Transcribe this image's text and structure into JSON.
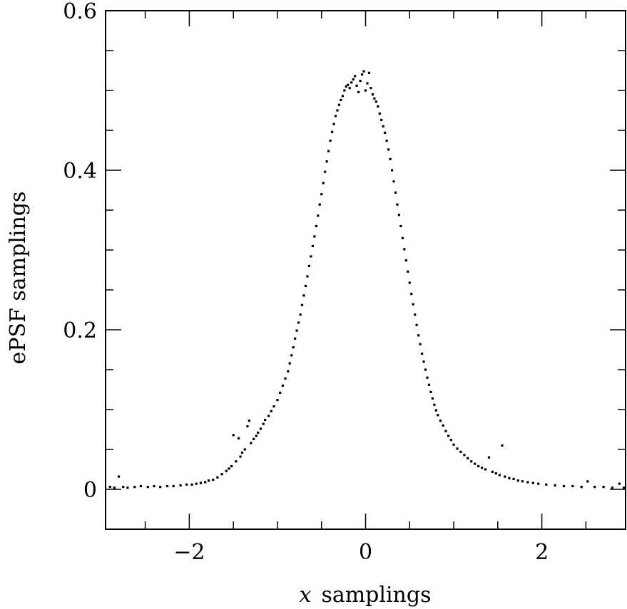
{
  "chart_data": {
    "type": "scatter",
    "title": "",
    "xlabel_var": "x",
    "xlabel_rest": "samplings",
    "ylabel": "ePSF samplings",
    "xlim": [
      -2.95,
      2.95
    ],
    "ylim": [
      -0.05,
      0.6
    ],
    "x_ticks_major": [
      -2,
      0,
      2
    ],
    "x_tick_labels": [
      "−2",
      "0",
      "2"
    ],
    "y_ticks_major": [
      0,
      0.2,
      0.4,
      0.6
    ],
    "y_tick_labels": [
      "0",
      "0.2",
      "0.4",
      "0.6"
    ],
    "x_ticks_minor_step": 0.5,
    "y_ticks_minor_step": 0.05,
    "marker_color": "#000000",
    "points": [
      [
        -2.9,
        0.003
      ],
      [
        -2.85,
        0.002
      ],
      [
        -2.8,
        0.016
      ],
      [
        -2.75,
        0.003
      ],
      [
        -2.7,
        0.002
      ],
      [
        -2.62,
        0.003
      ],
      [
        -2.55,
        0.004
      ],
      [
        -2.47,
        0.003
      ],
      [
        -2.4,
        0.004
      ],
      [
        -2.33,
        0.003
      ],
      [
        -2.25,
        0.004
      ],
      [
        -2.18,
        0.004
      ],
      [
        -2.1,
        0.005
      ],
      [
        -2.03,
        0.006
      ],
      [
        -1.97,
        0.006
      ],
      [
        -1.92,
        0.007
      ],
      [
        -1.87,
        0.008
      ],
      [
        -1.82,
        0.009
      ],
      [
        -1.78,
        0.011
      ],
      [
        -1.73,
        0.012
      ],
      [
        -1.68,
        0.015
      ],
      [
        -1.63,
        0.019
      ],
      [
        -1.58,
        0.023
      ],
      [
        -1.55,
        0.026
      ],
      [
        -1.52,
        0.029
      ],
      [
        -1.5,
        0.068
      ],
      [
        -1.47,
        0.035
      ],
      [
        -1.44,
        0.064
      ],
      [
        -1.42,
        0.041
      ],
      [
        -1.4,
        0.046
      ],
      [
        -1.37,
        0.05
      ],
      [
        -1.34,
        0.079
      ],
      [
        -1.32,
        0.086
      ],
      [
        -1.3,
        0.058
      ],
      [
        -1.27,
        0.063
      ],
      [
        -1.24,
        0.067
      ],
      [
        -1.22,
        0.071
      ],
      [
        -1.19,
        0.076
      ],
      [
        -1.16,
        0.082
      ],
      [
        -1.14,
        0.087
      ],
      [
        -1.1,
        0.092
      ],
      [
        -1.07,
        0.098
      ],
      [
        -1.04,
        0.104
      ],
      [
        -1.0,
        0.112
      ],
      [
        -0.97,
        0.121
      ],
      [
        -0.94,
        0.13
      ],
      [
        -0.91,
        0.139
      ],
      [
        -0.88,
        0.148
      ],
      [
        -0.86,
        0.158
      ],
      [
        -0.84,
        0.168
      ],
      [
        -0.82,
        0.178
      ],
      [
        -0.8,
        0.189
      ],
      [
        -0.78,
        0.199
      ],
      [
        -0.76,
        0.209
      ],
      [
        -0.74,
        0.219
      ],
      [
        -0.72,
        0.231
      ],
      [
        -0.7,
        0.243
      ],
      [
        -0.68,
        0.255
      ],
      [
        -0.66,
        0.267
      ],
      [
        -0.64,
        0.28
      ],
      [
        -0.62,
        0.292
      ],
      [
        -0.6,
        0.305
      ],
      [
        -0.58,
        0.317
      ],
      [
        -0.56,
        0.33
      ],
      [
        -0.54,
        0.343
      ],
      [
        -0.52,
        0.357
      ],
      [
        -0.5,
        0.37
      ],
      [
        -0.48,
        0.384
      ],
      [
        -0.46,
        0.398
      ],
      [
        -0.44,
        0.411
      ],
      [
        -0.42,
        0.424
      ],
      [
        -0.4,
        0.437
      ],
      [
        -0.38,
        0.448
      ],
      [
        -0.36,
        0.458
      ],
      [
        -0.34,
        0.468
      ],
      [
        -0.32,
        0.475
      ],
      [
        -0.3,
        0.482
      ],
      [
        -0.28,
        0.488
      ],
      [
        -0.26,
        0.493
      ],
      [
        -0.24,
        0.5
      ],
      [
        -0.22,
        0.505
      ],
      [
        -0.2,
        0.507
      ],
      [
        -0.18,
        0.503
      ],
      [
        -0.16,
        0.51
      ],
      [
        -0.14,
        0.514
      ],
      [
        -0.12,
        0.518
      ],
      [
        -0.1,
        0.506
      ],
      [
        -0.08,
        0.498
      ],
      [
        -0.06,
        0.512
      ],
      [
        -0.04,
        0.52
      ],
      [
        -0.02,
        0.524
      ],
      [
        0.0,
        0.5
      ],
      [
        0.02,
        0.509
      ],
      [
        0.04,
        0.522
      ],
      [
        0.06,
        0.503
      ],
      [
        0.08,
        0.495
      ],
      [
        0.1,
        0.49
      ],
      [
        0.12,
        0.486
      ],
      [
        0.14,
        0.48
      ],
      [
        0.16,
        0.471
      ],
      [
        0.18,
        0.463
      ],
      [
        0.2,
        0.455
      ],
      [
        0.22,
        0.447
      ],
      [
        0.24,
        0.437
      ],
      [
        0.26,
        0.426
      ],
      [
        0.28,
        0.414
      ],
      [
        0.3,
        0.4
      ],
      [
        0.32,
        0.386
      ],
      [
        0.34,
        0.372
      ],
      [
        0.36,
        0.357
      ],
      [
        0.38,
        0.344
      ],
      [
        0.4,
        0.33
      ],
      [
        0.42,
        0.315
      ],
      [
        0.44,
        0.301
      ],
      [
        0.46,
        0.287
      ],
      [
        0.48,
        0.273
      ],
      [
        0.5,
        0.259
      ],
      [
        0.52,
        0.245
      ],
      [
        0.54,
        0.232
      ],
      [
        0.56,
        0.219
      ],
      [
        0.58,
        0.206
      ],
      [
        0.6,
        0.193
      ],
      [
        0.62,
        0.182
      ],
      [
        0.64,
        0.17
      ],
      [
        0.66,
        0.16
      ],
      [
        0.68,
        0.15
      ],
      [
        0.7,
        0.14
      ],
      [
        0.72,
        0.131
      ],
      [
        0.74,
        0.122
      ],
      [
        0.76,
        0.114
      ],
      [
        0.78,
        0.106
      ],
      [
        0.8,
        0.099
      ],
      [
        0.82,
        0.093
      ],
      [
        0.85,
        0.086
      ],
      [
        0.88,
        0.08
      ],
      [
        0.91,
        0.073
      ],
      [
        0.94,
        0.067
      ],
      [
        0.97,
        0.062
      ],
      [
        1.0,
        0.056
      ],
      [
        1.04,
        0.051
      ],
      [
        1.08,
        0.047
      ],
      [
        1.12,
        0.043
      ],
      [
        1.16,
        0.039
      ],
      [
        1.2,
        0.035
      ],
      [
        1.24,
        0.032
      ],
      [
        1.28,
        0.029
      ],
      [
        1.32,
        0.027
      ],
      [
        1.36,
        0.025
      ],
      [
        1.4,
        0.04
      ],
      [
        1.44,
        0.022
      ],
      [
        1.48,
        0.02
      ],
      [
        1.52,
        0.018
      ],
      [
        1.55,
        0.055
      ],
      [
        1.58,
        0.016
      ],
      [
        1.63,
        0.014
      ],
      [
        1.68,
        0.013
      ],
      [
        1.73,
        0.011
      ],
      [
        1.78,
        0.01
      ],
      [
        1.84,
        0.009
      ],
      [
        1.9,
        0.008
      ],
      [
        1.96,
        0.007
      ],
      [
        2.05,
        0.006
      ],
      [
        2.15,
        0.005
      ],
      [
        2.25,
        0.004
      ],
      [
        2.35,
        0.004
      ],
      [
        2.45,
        0.003
      ],
      [
        2.52,
        0.01
      ],
      [
        2.6,
        0.003
      ],
      [
        2.7,
        0.003
      ],
      [
        2.8,
        0.002
      ],
      [
        2.88,
        0.007
      ],
      [
        2.93,
        0.002
      ]
    ]
  }
}
